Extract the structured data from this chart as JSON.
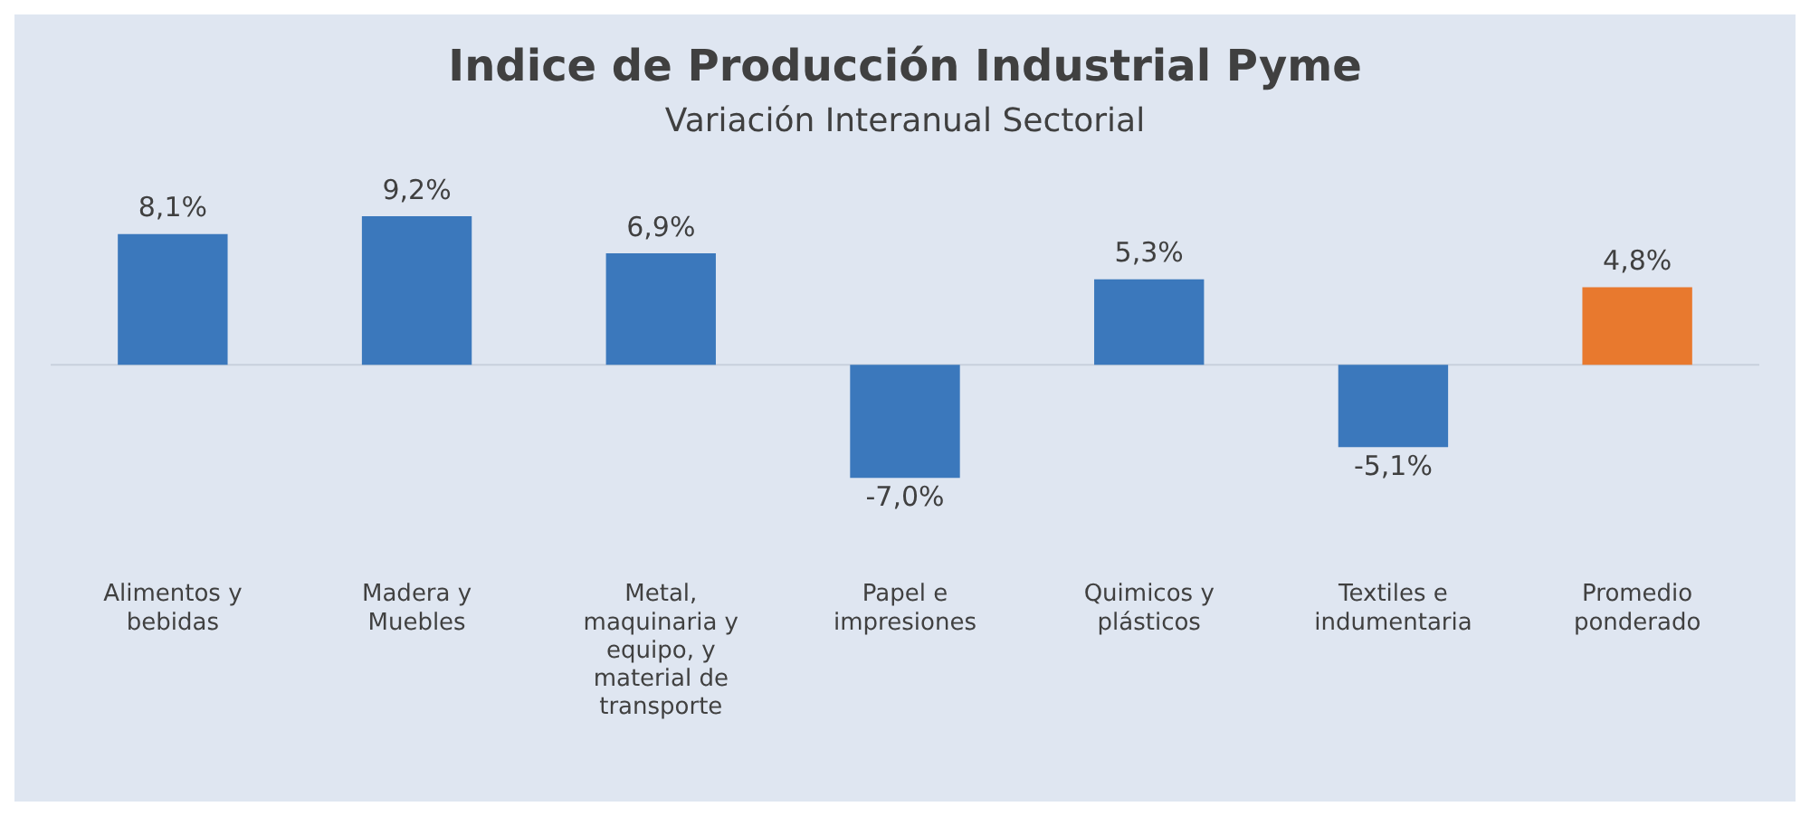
{
  "chart_data": {
    "type": "bar",
    "title": "Indice de Producción Industrial Pyme",
    "subtitle": "Variación Interanual Sectorial",
    "categories": [
      "Alimentos y bebidas",
      "Madera y Muebles",
      "Metal, maquinaria y equipo, y material de transporte",
      "Papel e impresiones",
      "Quimicos y plásticos",
      "Textiles e indumentaria",
      "Promedio ponderado"
    ],
    "values": [
      8.1,
      9.2,
      6.9,
      -7.0,
      5.3,
      -5.1,
      4.8
    ],
    "colors": [
      "#3b78bc",
      "#3b78bc",
      "#3b78bc",
      "#3b78bc",
      "#3b78bc",
      "#3b78bc",
      "#e8792e"
    ],
    "value_labels": [
      "8,1%",
      "9,2%",
      "6,9%",
      "-7,0%",
      "5,3%",
      "-5,1%",
      "4,8%"
    ],
    "grid": false,
    "legend": false
  }
}
